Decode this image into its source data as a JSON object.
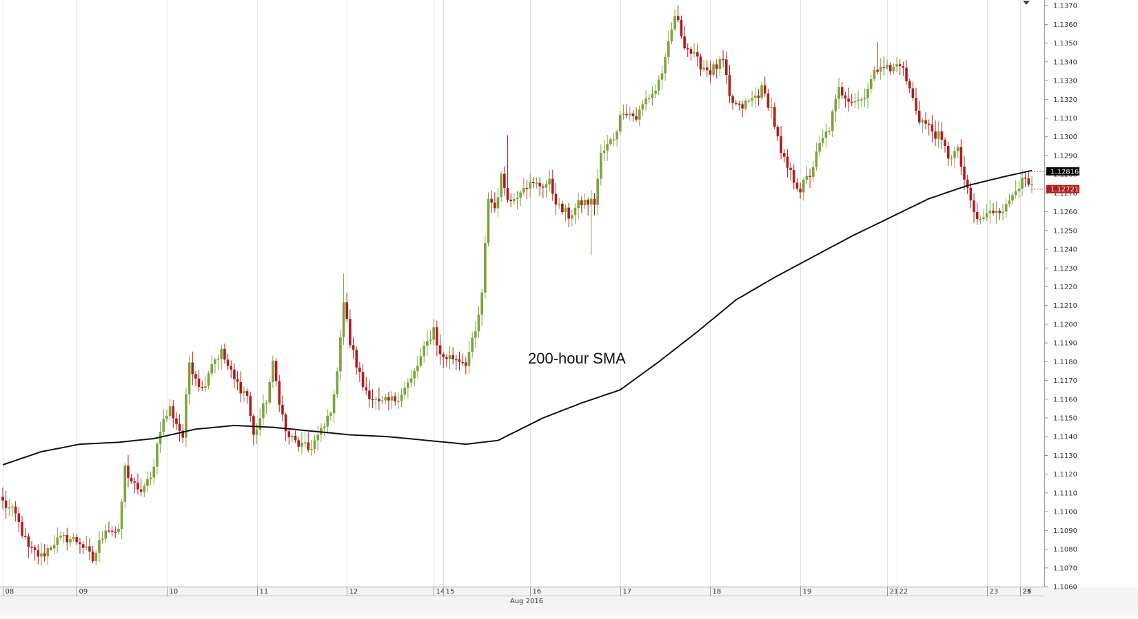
{
  "chart_data": {
    "type": "candlestick",
    "colors": {
      "up": "#7ba43a",
      "down": "#b01c1c",
      "sma": "#111111",
      "grid": "#e3e3e3",
      "sma_badge": "#000000",
      "price_badge": "#b01c1c"
    },
    "ylim": [
      1.106,
      1.1373
    ],
    "y_ticks": [
      "1.1060",
      "1.1070",
      "1.1080",
      "1.1090",
      "1.1100",
      "1.1110",
      "1.1120",
      "1.1130",
      "1.1140",
      "1.1150",
      "1.1160",
      "1.1170",
      "1.1180",
      "1.1190",
      "1.1200",
      "1.1210",
      "1.1220",
      "1.1230",
      "1.1240",
      "1.1250",
      "1.1260",
      "1.1270",
      "1.1280",
      "1.1290",
      "1.1300",
      "1.1310",
      "1.1320",
      "1.1330",
      "1.1340",
      "1.1350",
      "1.1360",
      "1.1370"
    ],
    "x_ticks": [
      "08",
      "09",
      "10",
      "11",
      "12",
      "14",
      "15",
      "16",
      "17",
      "18",
      "19",
      "21",
      "22",
      "23",
      "24",
      "25"
    ],
    "x_month_label": "Aug 2016",
    "annotation": "200-hour SMA",
    "sma_last_label": "1.12816",
    "price_last_label": "1.12721",
    "sma_anchors": [
      [
        0,
        1.1125
      ],
      [
        12,
        1.1132
      ],
      [
        24,
        1.1136
      ],
      [
        36,
        1.1137
      ],
      [
        47,
        1.1139
      ],
      [
        60,
        1.1144
      ],
      [
        72,
        1.1146
      ],
      [
        84,
        1.1145
      ],
      [
        96,
        1.1143
      ],
      [
        108,
        1.1141
      ],
      [
        120,
        1.114
      ],
      [
        132,
        1.1138
      ],
      [
        144,
        1.1136
      ],
      [
        154,
        1.1138
      ],
      [
        168,
        1.115
      ],
      [
        180,
        1.1158
      ],
      [
        192,
        1.1165
      ],
      [
        204,
        1.118
      ],
      [
        216,
        1.1196
      ],
      [
        228,
        1.1213
      ],
      [
        240,
        1.1225
      ],
      [
        252,
        1.1236
      ],
      [
        264,
        1.1247
      ],
      [
        276,
        1.1257
      ],
      [
        288,
        1.1267
      ],
      [
        300,
        1.1274
      ],
      [
        312,
        1.1279
      ],
      [
        320,
        1.1282
      ]
    ],
    "price_anchors": [
      [
        0,
        1.1105
      ],
      [
        4,
        1.1098
      ],
      [
        8,
        1.108
      ],
      [
        12,
        1.1076
      ],
      [
        16,
        1.1084
      ],
      [
        20,
        1.1086
      ],
      [
        24,
        1.1084
      ],
      [
        28,
        1.1074
      ],
      [
        32,
        1.1092
      ],
      [
        36,
        1.1088
      ],
      [
        38,
        1.1123
      ],
      [
        42,
        1.111
      ],
      [
        46,
        1.1117
      ],
      [
        49,
        1.1145
      ],
      [
        52,
        1.1155
      ],
      [
        56,
        1.114
      ],
      [
        58,
        1.118
      ],
      [
        62,
        1.1165
      ],
      [
        65,
        1.118
      ],
      [
        68,
        1.1185
      ],
      [
        72,
        1.117
      ],
      [
        76,
        1.1162
      ],
      [
        78,
        1.114
      ],
      [
        82,
        1.116
      ],
      [
        84,
        1.1178
      ],
      [
        86,
        1.116
      ],
      [
        88,
        1.1142
      ],
      [
        91,
        1.1137
      ],
      [
        95,
        1.1133
      ],
      [
        98,
        1.114
      ],
      [
        100,
        1.1145
      ],
      [
        103,
        1.116
      ],
      [
        106,
        1.1212
      ],
      [
        108,
        1.119
      ],
      [
        112,
        1.1167
      ],
      [
        117,
        1.1157
      ],
      [
        122,
        1.116
      ],
      [
        127,
        1.117
      ],
      [
        130,
        1.1182
      ],
      [
        134,
        1.1198
      ],
      [
        136,
        1.1183
      ],
      [
        141,
        1.1182
      ],
      [
        144,
        1.118
      ],
      [
        147,
        1.1195
      ],
      [
        149,
        1.1215
      ],
      [
        151,
        1.1268
      ],
      [
        153,
        1.1262
      ],
      [
        155,
        1.1278
      ],
      [
        158,
        1.1265
      ],
      [
        162,
        1.1275
      ],
      [
        165,
        1.1274
      ],
      [
        170,
        1.1275
      ],
      [
        173,
        1.1262
      ],
      [
        176,
        1.1258
      ],
      [
        180,
        1.1265
      ],
      [
        184,
        1.1265
      ],
      [
        186,
        1.129
      ],
      [
        190,
        1.13
      ],
      [
        193,
        1.1315
      ],
      [
        197,
        1.131
      ],
      [
        200,
        1.132
      ],
      [
        203,
        1.1325
      ],
      [
        206,
        1.134
      ],
      [
        209,
        1.1365
      ],
      [
        212,
        1.135
      ],
      [
        216,
        1.134
      ],
      [
        220,
        1.1335
      ],
      [
        224,
        1.134
      ],
      [
        226,
        1.132
      ],
      [
        229,
        1.1315
      ],
      [
        233,
        1.132
      ],
      [
        236,
        1.1325
      ],
      [
        239,
        1.1315
      ],
      [
        242,
        1.129
      ],
      [
        245,
        1.128
      ],
      [
        248,
        1.1272
      ],
      [
        251,
        1.128
      ],
      [
        254,
        1.1295
      ],
      [
        257,
        1.1305
      ],
      [
        260,
        1.1325
      ],
      [
        264,
        1.132
      ],
      [
        267,
        1.132
      ],
      [
        270,
        1.133
      ],
      [
        273,
        1.134
      ],
      [
        276,
        1.1335
      ],
      [
        279,
        1.134
      ],
      [
        282,
        1.1325
      ],
      [
        285,
        1.131
      ],
      [
        288,
        1.1305
      ],
      [
        291,
        1.13
      ],
      [
        294,
        1.129
      ],
      [
        297,
        1.1292
      ],
      [
        300,
        1.127
      ],
      [
        303,
        1.1255
      ],
      [
        306,
        1.1258
      ],
      [
        309,
        1.1262
      ],
      [
        312,
        1.1262
      ],
      [
        315,
        1.1274
      ],
      [
        318,
        1.1276
      ],
      [
        320,
        1.1272
      ]
    ]
  }
}
